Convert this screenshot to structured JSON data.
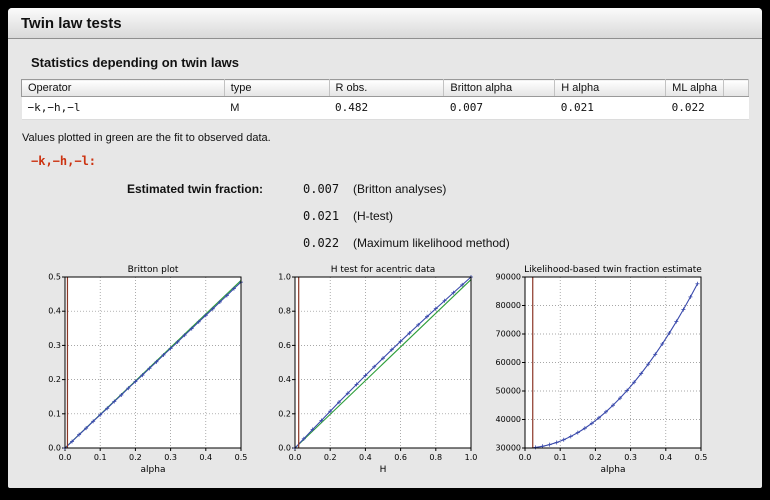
{
  "window": {
    "title": "Twin law tests"
  },
  "section_title": "Statistics depending on twin laws",
  "table": {
    "headers": [
      "Operator",
      "type",
      "R obs.",
      "Britton alpha",
      "H alpha",
      "ML alpha"
    ],
    "rows": [
      [
        "−k,−h,−l",
        "M",
        "0.482",
        "0.007",
        "0.021",
        "0.022"
      ]
    ]
  },
  "note": "Values plotted in green are the fit to observed data.",
  "twin_law_heading": "−k,−h,−l:",
  "estimated_fraction": {
    "label": "Estimated twin fraction:",
    "entries": [
      {
        "value": "0.007",
        "method": "(Britton analyses)"
      },
      {
        "value": "0.021",
        "method": "(H-test)"
      },
      {
        "value": "0.022",
        "method": "(Maximum likelihood method)"
      }
    ]
  },
  "colors": {
    "accent_red": "#cc3311",
    "fit_green": "#2e9e3a",
    "data_blue": "#3949ab",
    "marker_line": "#8b3626",
    "figure_bg": "#e7e7e7"
  },
  "chart_data": [
    {
      "type": "line",
      "title": "Britton plot",
      "xlabel": "alpha",
      "ylabel": "",
      "xlim": [
        0.0,
        0.5
      ],
      "ylim": [
        0.0,
        0.5
      ],
      "grid": true,
      "legend": "none",
      "xticks": [
        0.0,
        0.1,
        0.2,
        0.3,
        0.4,
        0.5
      ],
      "xtick_labels": [
        "0.0",
        "0.1",
        "0.2",
        "0.3",
        "0.4",
        "0.5"
      ],
      "yticks": [
        0.0,
        0.1,
        0.2,
        0.3,
        0.4,
        0.5
      ],
      "ytick_labels": [
        "0.0",
        "0.1",
        "0.2",
        "0.3",
        "0.4",
        "0.5"
      ],
      "vline": {
        "x": 0.007,
        "color": "#8b3626"
      },
      "series": [
        {
          "name": "fit",
          "color": "#2e9e3a",
          "marker": "none",
          "x": [
            0.0,
            0.5
          ],
          "y": [
            0.0,
            0.49
          ]
        },
        {
          "name": "observed",
          "color": "#3949ab",
          "marker": "+",
          "x": [
            0.0,
            0.02,
            0.04,
            0.06,
            0.08,
            0.1,
            0.12,
            0.14,
            0.16,
            0.18,
            0.2,
            0.22,
            0.24,
            0.26,
            0.28,
            0.3,
            0.32,
            0.34,
            0.36,
            0.38,
            0.4,
            0.42,
            0.44,
            0.46,
            0.48,
            0.5
          ],
          "y": [
            0.0,
            0.019,
            0.039,
            0.058,
            0.078,
            0.097,
            0.116,
            0.136,
            0.155,
            0.175,
            0.194,
            0.213,
            0.233,
            0.252,
            0.272,
            0.291,
            0.31,
            0.33,
            0.349,
            0.369,
            0.388,
            0.407,
            0.427,
            0.446,
            0.466,
            0.485
          ]
        }
      ]
    },
    {
      "type": "line",
      "title": "H test for acentric data",
      "xlabel": "H",
      "ylabel": "",
      "xlim": [
        0.0,
        1.0
      ],
      "ylim": [
        0.0,
        1.0
      ],
      "grid": true,
      "legend": "none",
      "xticks": [
        0.0,
        0.2,
        0.4,
        0.6,
        0.8,
        1.0
      ],
      "xtick_labels": [
        "0.0",
        "0.2",
        "0.4",
        "0.6",
        "0.8",
        "1.0"
      ],
      "yticks": [
        0.0,
        0.2,
        0.4,
        0.6,
        0.8,
        1.0
      ],
      "ytick_labels": [
        "0.0",
        "0.2",
        "0.4",
        "0.6",
        "0.8",
        "1.0"
      ],
      "vline": {
        "x": 0.021,
        "color": "#8b3626"
      },
      "series": [
        {
          "name": "fit",
          "color": "#2e9e3a",
          "marker": "none",
          "x": [
            0.0,
            1.0
          ],
          "y": [
            0.0,
            0.985
          ]
        },
        {
          "name": "observed",
          "color": "#3949ab",
          "marker": "+",
          "x": [
            0.0,
            0.05,
            0.1,
            0.15,
            0.2,
            0.25,
            0.3,
            0.35,
            0.4,
            0.45,
            0.5,
            0.55,
            0.6,
            0.65,
            0.7,
            0.75,
            0.8,
            0.85,
            0.9,
            0.95,
            1.0
          ],
          "y": [
            0.0,
            0.054,
            0.108,
            0.161,
            0.215,
            0.268,
            0.32,
            0.372,
            0.424,
            0.475,
            0.525,
            0.575,
            0.624,
            0.672,
            0.72,
            0.768,
            0.815,
            0.861,
            0.908,
            0.954,
            1.0
          ]
        }
      ]
    },
    {
      "type": "line",
      "title": "Likelihood-based twin fraction estimate",
      "xlabel": "alpha",
      "ylabel": "",
      "xlim": [
        0.0,
        0.5
      ],
      "ylim": [
        330000,
        390000
      ],
      "grid": true,
      "legend": "none",
      "xticks": [
        0.0,
        0.1,
        0.2,
        0.3,
        0.4,
        0.5
      ],
      "xtick_labels": [
        "0.0",
        "0.1",
        "0.2",
        "0.3",
        "0.4",
        "0.5"
      ],
      "yticks": [
        330000,
        340000,
        350000,
        360000,
        370000,
        380000,
        390000
      ],
      "ytick_labels": [
        "30000",
        "40000",
        "50000",
        "60000",
        "70000",
        "80000",
        "90000"
      ],
      "vline": {
        "x": 0.022,
        "color": "#8b3626"
      },
      "series": [
        {
          "name": "likelihood",
          "color": "#3949ab",
          "marker": "+",
          "x": [
            0.03,
            0.05,
            0.07,
            0.09,
            0.11,
            0.13,
            0.15,
            0.17,
            0.19,
            0.21,
            0.23,
            0.25,
            0.27,
            0.29,
            0.31,
            0.33,
            0.35,
            0.37,
            0.39,
            0.41,
            0.43,
            0.45,
            0.47,
            0.49
          ],
          "y": [
            330216,
            330600,
            331176,
            331944,
            332904,
            334056,
            335400,
            336936,
            338664,
            340584,
            342696,
            345000,
            347496,
            350184,
            353064,
            356136,
            359400,
            362856,
            366504,
            370344,
            374376,
            378600,
            383016,
            387624
          ]
        }
      ]
    }
  ]
}
